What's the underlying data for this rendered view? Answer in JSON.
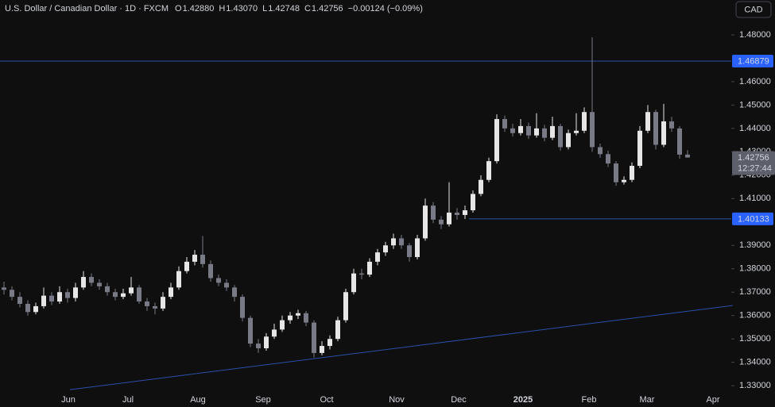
{
  "chart_data": {
    "type": "candlestick",
    "header": {
      "title": "U.S. Dollar / Canadian Dollar · 1D · FXCM",
      "fields": [
        {
          "key": "O",
          "value": "1.42880"
        },
        {
          "key": "H",
          "value": "1.43070"
        },
        {
          "key": "L",
          "value": "1.42748"
        },
        {
          "key": "C",
          "value": "1.42756"
        }
      ],
      "change": "−0.00124 (−0.09%)"
    },
    "currency": "CAD",
    "up_color": "#e6e6e6",
    "down_color": "#787b86",
    "line_color": "#2b4fa8",
    "label_color": "#2962ff",
    "candles": [
      [
        1.372,
        1.3745,
        1.369,
        1.371
      ],
      [
        1.371,
        1.3725,
        1.3665,
        1.368
      ],
      [
        1.368,
        1.37,
        1.3635,
        1.365
      ],
      [
        1.365,
        1.3665,
        1.36,
        1.3615
      ],
      [
        1.3615,
        1.3655,
        1.3605,
        1.364
      ],
      [
        1.364,
        1.372,
        1.363,
        1.3685
      ],
      [
        1.3685,
        1.37,
        1.3645,
        1.366
      ],
      [
        1.366,
        1.3725,
        1.365,
        1.37
      ],
      [
        1.37,
        1.3715,
        1.3655,
        1.3675
      ],
      [
        1.3675,
        1.374,
        1.366,
        1.372
      ],
      [
        1.372,
        1.379,
        1.371,
        1.3765
      ],
      [
        1.3765,
        1.378,
        1.3725,
        1.374
      ],
      [
        1.374,
        1.3755,
        1.371,
        1.3725
      ],
      [
        1.3725,
        1.374,
        1.3685,
        1.37
      ],
      [
        1.37,
        1.3715,
        1.3665,
        1.368
      ],
      [
        1.368,
        1.3715,
        1.367,
        1.3695
      ],
      [
        1.3695,
        1.3765,
        1.3685,
        1.372
      ],
      [
        1.372,
        1.373,
        1.365,
        1.366
      ],
      [
        1.366,
        1.3675,
        1.362,
        1.364
      ],
      [
        1.364,
        1.3655,
        1.3605,
        1.363
      ],
      [
        1.363,
        1.37,
        1.362,
        1.368
      ],
      [
        1.368,
        1.374,
        1.367,
        1.372
      ],
      [
        1.372,
        1.381,
        1.371,
        1.379
      ],
      [
        1.379,
        1.385,
        1.378,
        1.383
      ],
      [
        1.383,
        1.388,
        1.3815,
        1.386
      ],
      [
        1.386,
        1.394,
        1.3805,
        1.382
      ],
      [
        1.382,
        1.3835,
        1.3745,
        1.376
      ],
      [
        1.376,
        1.3775,
        1.3725,
        1.374
      ],
      [
        1.374,
        1.3755,
        1.3705,
        1.372
      ],
      [
        1.372,
        1.373,
        1.366,
        1.368
      ],
      [
        1.368,
        1.369,
        1.3575,
        1.359
      ],
      [
        1.359,
        1.36,
        1.3465,
        1.348
      ],
      [
        1.348,
        1.35,
        1.344,
        1.346
      ],
      [
        1.346,
        1.3525,
        1.345,
        1.351
      ],
      [
        1.351,
        1.3565,
        1.35,
        1.354
      ],
      [
        1.354,
        1.36,
        1.353,
        1.358
      ],
      [
        1.358,
        1.3615,
        1.3565,
        1.36
      ],
      [
        1.36,
        1.3625,
        1.3585,
        1.361
      ],
      [
        1.361,
        1.362,
        1.3555,
        1.357
      ],
      [
        1.357,
        1.358,
        1.342,
        1.344
      ],
      [
        1.344,
        1.349,
        1.343,
        1.347
      ],
      [
        1.347,
        1.3515,
        1.3455,
        1.35
      ],
      [
        1.35,
        1.3595,
        1.349,
        1.358
      ],
      [
        1.358,
        1.3715,
        1.357,
        1.37
      ],
      [
        1.37,
        1.38,
        1.369,
        1.378
      ],
      [
        1.378,
        1.38,
        1.3755,
        1.3775
      ],
      [
        1.3775,
        1.3845,
        1.3765,
        1.383
      ],
      [
        1.383,
        1.3885,
        1.3815,
        1.387
      ],
      [
        1.387,
        1.3915,
        1.3855,
        1.39
      ],
      [
        1.39,
        1.395,
        1.3885,
        1.393
      ],
      [
        1.393,
        1.3945,
        1.3885,
        1.39
      ],
      [
        1.39,
        1.391,
        1.383,
        1.385
      ],
      [
        1.385,
        1.3945,
        1.384,
        1.393
      ],
      [
        1.393,
        1.41,
        1.392,
        1.407
      ],
      [
        1.407,
        1.4085,
        1.3995,
        1.401
      ],
      [
        1.401,
        1.4025,
        1.397,
        1.399
      ],
      [
        1.399,
        1.417,
        1.398,
        1.404
      ],
      [
        1.404,
        1.406,
        1.401,
        1.403
      ],
      [
        1.403,
        1.407,
        1.4013,
        1.405
      ],
      [
        1.405,
        1.4135,
        1.404,
        1.412
      ],
      [
        1.412,
        1.42,
        1.411,
        1.418
      ],
      [
        1.418,
        1.4275,
        1.417,
        1.426
      ],
      [
        1.426,
        1.446,
        1.425,
        1.444
      ],
      [
        1.444,
        1.4455,
        1.4385,
        1.44
      ],
      [
        1.44,
        1.442,
        1.4365,
        1.438
      ],
      [
        1.438,
        1.444,
        1.437,
        1.441
      ],
      [
        1.441,
        1.4425,
        1.4355,
        1.437
      ],
      [
        1.437,
        1.4465,
        1.436,
        1.44
      ],
      [
        1.44,
        1.4415,
        1.4345,
        1.436
      ],
      [
        1.436,
        1.445,
        1.435,
        1.441
      ],
      [
        1.441,
        1.442,
        1.4305,
        1.432
      ],
      [
        1.432,
        1.4395,
        1.431,
        1.438
      ],
      [
        1.438,
        1.4465,
        1.437,
        1.439
      ],
      [
        1.439,
        1.449,
        1.438,
        1.447
      ],
      [
        1.447,
        1.479,
        1.43,
        1.432
      ],
      [
        1.432,
        1.4335,
        1.4275,
        1.429
      ],
      [
        1.429,
        1.4305,
        1.4235,
        1.425
      ],
      [
        1.425,
        1.426,
        1.4155,
        1.417
      ],
      [
        1.417,
        1.4195,
        1.416,
        1.418
      ],
      [
        1.418,
        1.4255,
        1.417,
        1.424
      ],
      [
        1.424,
        1.441,
        1.423,
        1.439
      ],
      [
        1.439,
        1.45,
        1.438,
        1.447
      ],
      [
        1.447,
        1.448,
        1.431,
        1.433
      ],
      [
        1.433,
        1.4505,
        1.432,
        1.443
      ],
      [
        1.443,
        1.445,
        1.4385,
        1.44
      ],
      [
        1.44,
        1.441,
        1.427,
        1.4288
      ],
      [
        1.4288,
        1.4307,
        1.42748,
        1.42756
      ]
    ],
    "xlim": [
      -0.5,
      91.5
    ],
    "ylim": [
      1.3287,
      1.4949
    ],
    "xticks": [
      {
        "value": 8.1,
        "label": "Jun"
      },
      {
        "value": 15.6,
        "label": "Jul"
      },
      {
        "value": 24.4,
        "label": "Aug"
      },
      {
        "value": 32.6,
        "label": "Sep"
      },
      {
        "value": 40.6,
        "label": "Oct"
      },
      {
        "value": 49.4,
        "label": "Nov"
      },
      {
        "value": 57.2,
        "label": "Dec"
      },
      {
        "value": 65.3,
        "label": "2025"
      },
      {
        "value": 73.6,
        "label": "Feb"
      },
      {
        "value": 80.9,
        "label": "Mar"
      },
      {
        "value": 89.2,
        "label": "Apr"
      }
    ],
    "yticks": [
      {
        "value": 1.48,
        "label": "1.48000"
      },
      {
        "value": 1.46,
        "label": "1.46000"
      },
      {
        "value": 1.45,
        "label": "1.45000"
      },
      {
        "value": 1.44,
        "label": "1.44000"
      },
      {
        "value": 1.43,
        "label": "1.43000"
      },
      {
        "value": 1.42,
        "label": "1.42000"
      },
      {
        "value": 1.41,
        "label": "1.41000"
      },
      {
        "value": 1.39,
        "label": "1.39000"
      },
      {
        "value": 1.38,
        "label": "1.38000"
      },
      {
        "value": 1.37,
        "label": "1.37000"
      },
      {
        "value": 1.36,
        "label": "1.36000"
      },
      {
        "value": 1.35,
        "label": "1.35000"
      },
      {
        "value": 1.34,
        "label": "1.34000"
      },
      {
        "value": 1.33,
        "label": "1.33000"
      }
    ],
    "levels": [
      {
        "value": 1.46879,
        "label": "1.46879",
        "start": -0.5
      },
      {
        "value": 1.40133,
        "label": "1.40133",
        "start": 58.5
      }
    ],
    "trendline": {
      "x": [
        8.3,
        91.7
      ],
      "y": [
        1.3283,
        1.3643
      ]
    },
    "last_price": {
      "value": 1.42756,
      "label": "1.42756",
      "countdown": "12:27:44"
    }
  }
}
